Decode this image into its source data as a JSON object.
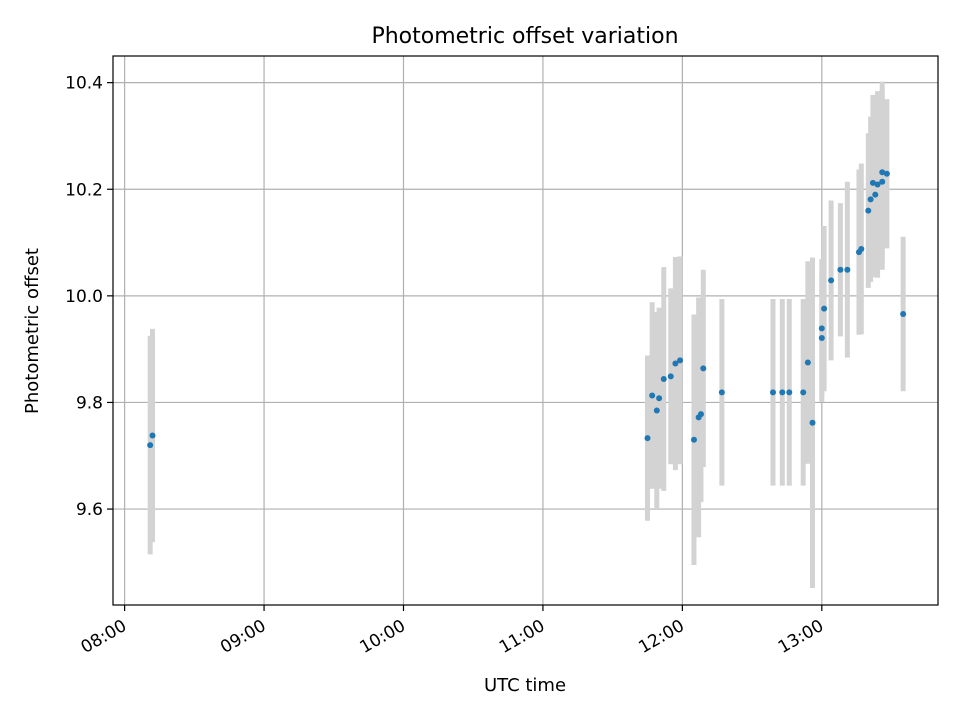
{
  "chart_data": {
    "type": "scatter",
    "title": "Photometric offset variation",
    "xlabel": "UTC time",
    "ylabel": "Photometric offset",
    "x_ticks": [
      "08:00",
      "09:00",
      "10:00",
      "11:00",
      "12:00",
      "13:00"
    ],
    "y_ticks": [
      "9.6",
      "9.8",
      "10.0",
      "10.2",
      "10.4"
    ],
    "xlim": [
      "07:55",
      "13:50"
    ],
    "ylim": [
      9.42,
      10.45
    ],
    "grid": true,
    "marker_color": "#1f77b4",
    "errorbar_color": "#d3d3d3",
    "points": [
      {
        "x": "08:11",
        "y": 9.72,
        "err": 0.205
      },
      {
        "x": "08:12",
        "y": 9.738,
        "err": 0.2
      },
      {
        "x": "11:45",
        "y": 9.733,
        "err": 0.155
      },
      {
        "x": "11:47",
        "y": 9.813,
        "err": 0.175
      },
      {
        "x": "11:49",
        "y": 9.785,
        "err": 0.185
      },
      {
        "x": "11:50",
        "y": 9.808,
        "err": 0.17
      },
      {
        "x": "11:52",
        "y": 9.844,
        "err": 0.21
      },
      {
        "x": "11:55",
        "y": 9.849,
        "err": 0.165
      },
      {
        "x": "11:57",
        "y": 9.873,
        "err": 0.2
      },
      {
        "x": "11:59",
        "y": 9.879,
        "err": 0.195
      },
      {
        "x": "12:05",
        "y": 9.73,
        "err": 0.235
      },
      {
        "x": "12:07",
        "y": 9.772,
        "err": 0.225
      },
      {
        "x": "12:08",
        "y": 9.778,
        "err": 0.165
      },
      {
        "x": "12:09",
        "y": 9.864,
        "err": 0.185
      },
      {
        "x": "12:17",
        "y": 9.819,
        "err": 0.175
      },
      {
        "x": "12:39",
        "y": 9.819,
        "err": 0.175
      },
      {
        "x": "12:43",
        "y": 9.819,
        "err": 0.175
      },
      {
        "x": "12:46",
        "y": 9.819,
        "err": 0.175
      },
      {
        "x": "12:52",
        "y": 9.819,
        "err": 0.175
      },
      {
        "x": "12:54",
        "y": 9.875,
        "err": 0.19
      },
      {
        "x": "12:56",
        "y": 9.762,
        "err": 0.31
      },
      {
        "x": "13:00",
        "y": 9.921,
        "err": 0.12
      },
      {
        "x": "13:00",
        "y": 9.939,
        "err": 0.13
      },
      {
        "x": "13:01",
        "y": 9.976,
        "err": 0.155
      },
      {
        "x": "13:04",
        "y": 10.029,
        "err": 0.15
      },
      {
        "x": "13:08",
        "y": 10.049,
        "err": 0.125
      },
      {
        "x": "13:11",
        "y": 10.049,
        "err": 0.165
      },
      {
        "x": "13:16",
        "y": 10.082,
        "err": 0.155
      },
      {
        "x": "13:17",
        "y": 10.088,
        "err": 0.16
      },
      {
        "x": "13:20",
        "y": 10.16,
        "err": 0.145
      },
      {
        "x": "13:21",
        "y": 10.181,
        "err": 0.155
      },
      {
        "x": "13:22",
        "y": 10.212,
        "err": 0.165
      },
      {
        "x": "13:23",
        "y": 10.19,
        "err": 0.155
      },
      {
        "x": "13:24",
        "y": 10.209,
        "err": 0.175
      },
      {
        "x": "13:26",
        "y": 10.232,
        "err": 0.17
      },
      {
        "x": "13:26",
        "y": 10.214,
        "err": 0.165
      },
      {
        "x": "13:28",
        "y": 10.229,
        "err": 0.14
      },
      {
        "x": "13:35",
        "y": 9.966,
        "err": 0.145
      }
    ]
  }
}
